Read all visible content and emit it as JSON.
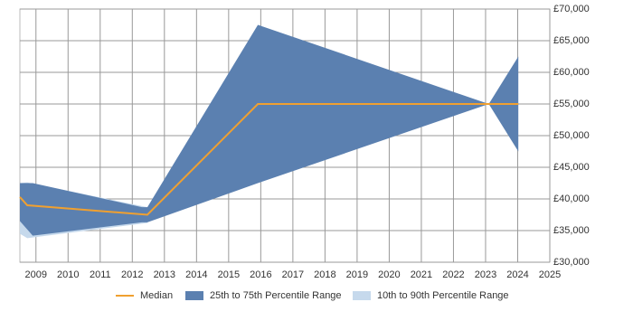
{
  "chart_data": {
    "type": "line",
    "xlim": [
      2008.5,
      2025
    ],
    "xticks": [
      2009,
      2010,
      2011,
      2012,
      2013,
      2014,
      2015,
      2016,
      2017,
      2018,
      2019,
      2020,
      2021,
      2022,
      2023,
      2024,
      2025
    ],
    "ylim": [
      30000,
      70000
    ],
    "yticks": [
      {
        "value": 30000,
        "label": "£30,000"
      },
      {
        "value": 35000,
        "label": "£35,000"
      },
      {
        "value": 40000,
        "label": "£40,000"
      },
      {
        "value": 45000,
        "label": "£45,000"
      },
      {
        "value": 50000,
        "label": "£50,000"
      },
      {
        "value": 55000,
        "label": "£55,000"
      },
      {
        "value": 60000,
        "label": "£60,000"
      },
      {
        "value": 65000,
        "label": "£65,000"
      },
      {
        "value": 70000,
        "label": "£70,000"
      }
    ],
    "grid": true,
    "legend": "bottom",
    "series": [
      {
        "name": "10th to 90th Percentile Range",
        "color": "#c6d9ec",
        "x": [
          2008.5,
          2008.73,
          2012.47
        ],
        "low": [
          34500,
          33800,
          36200
        ],
        "high": [
          42500,
          42600,
          38700
        ]
      },
      {
        "name": "25th to 75th Percentile Range",
        "color": "#5b80b0",
        "x": [
          2008.5,
          2008.9,
          2012.3,
          2012.47,
          2015.91,
          2023.1,
          2024.02
        ],
        "low": [
          36500,
          34200,
          36300,
          36300,
          42500,
          55000,
          47500
        ],
        "high": [
          42500,
          42500,
          38700,
          38700,
          67500,
          55000,
          62500
        ]
      },
      {
        "name": "Median",
        "color": "#f0a030",
        "x": [
          2008.5,
          2008.73,
          2012.47,
          2015.91,
          2024.02
        ],
        "values": [
          40300,
          39000,
          37500,
          55000,
          55000
        ]
      }
    ]
  }
}
